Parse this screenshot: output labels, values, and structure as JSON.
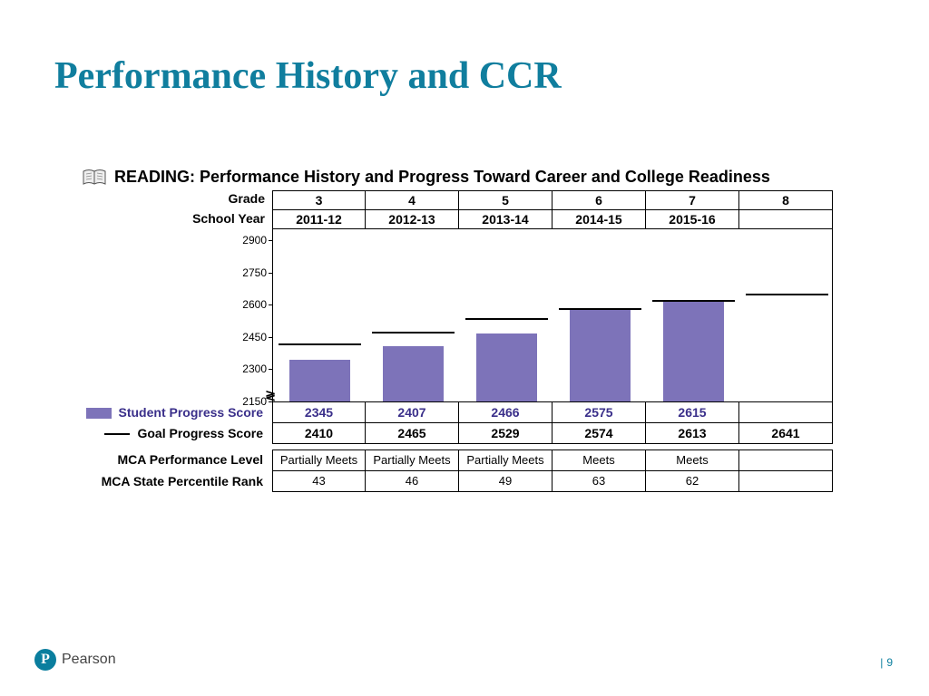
{
  "title": "Performance History and CCR",
  "panel_title": "READING: Performance History and Progress Toward Career and College Readiness",
  "header_labels": {
    "grade": "Grade",
    "school_year": "School Year"
  },
  "columns": [
    {
      "grade": "3",
      "year": "2011-12"
    },
    {
      "grade": "4",
      "year": "2012-13"
    },
    {
      "grade": "5",
      "year": "2013-14"
    },
    {
      "grade": "6",
      "year": "2014-15"
    },
    {
      "grade": "7",
      "year": "2015-16"
    },
    {
      "grade": "8",
      "year": ""
    }
  ],
  "chart": {
    "type": "bar",
    "ylim": [
      2150,
      2950
    ],
    "yticks": [
      2150,
      2300,
      2450,
      2600,
      2750,
      2900
    ],
    "bar_color": "#7d73b9",
    "goal_line_color": "#000000",
    "background_color": "#ffffff",
    "tick_fontsize": 12,
    "student_scores": [
      2345,
      2407,
      2466,
      2575,
      2615,
      null
    ],
    "goal_scores": [
      2410,
      2465,
      2529,
      2574,
      2613,
      2641
    ]
  },
  "row_labels": {
    "student": "Student Progress Score",
    "goal": "Goal Progress Score",
    "perf": "MCA Performance Level",
    "rank": "MCA State Percentile Rank"
  },
  "rows": {
    "student": [
      "2345",
      "2407",
      "2466",
      "2575",
      "2615",
      ""
    ],
    "goal": [
      "2410",
      "2465",
      "2529",
      "2574",
      "2613",
      "2641"
    ],
    "perf": [
      "Partially Meets",
      "Partially Meets",
      "Partially Meets",
      "Meets",
      "Meets",
      ""
    ],
    "rank": [
      "43",
      "46",
      "49",
      "63",
      "62",
      ""
    ]
  },
  "footer": {
    "brand": "Pearson",
    "page": "9"
  },
  "colors": {
    "title": "#107e9e",
    "student_text": "#3a2f8a"
  }
}
